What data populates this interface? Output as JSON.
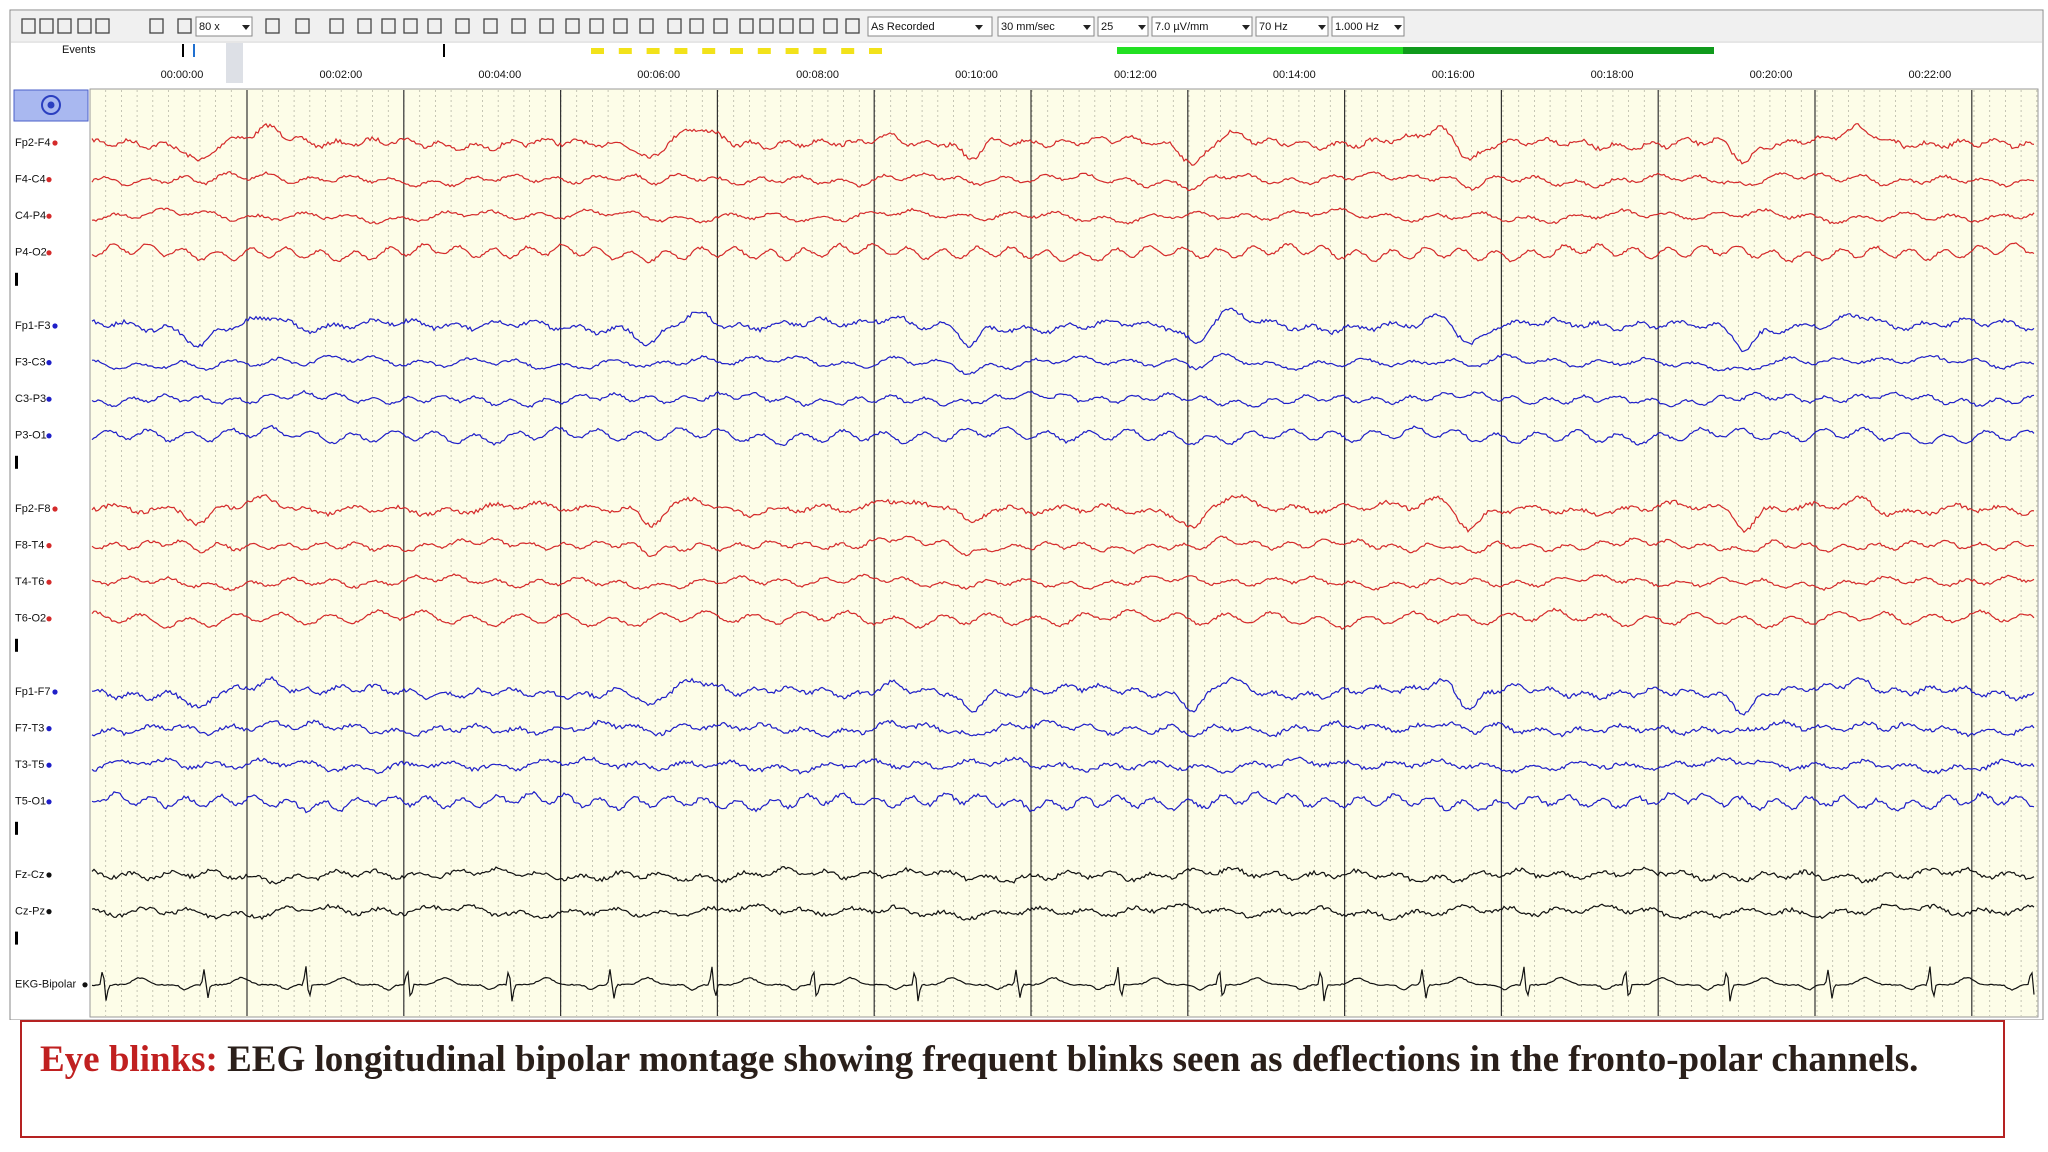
{
  "toolbar": {
    "zoom": "80 x",
    "montage": "As Recorded",
    "speed": "30 mm/sec",
    "value": "25",
    "sensitivity": "7.0 µV/mm",
    "high_filter": "70 Hz",
    "low_filter": "1.000 Hz"
  },
  "events_label": "Events",
  "time_labels": [
    "00:00:00",
    "00:02:00",
    "00:04:00",
    "00:06:00",
    "00:08:00",
    "00:10:00",
    "00:12:00",
    "00:14:00",
    "00:16:00",
    "00:18:00",
    "00:20:00",
    "00:22:00"
  ],
  "channels": [
    {
      "name": "Fp2-F4",
      "color": "#d42a2a"
    },
    {
      "name": "F4-C4",
      "color": "#d42a2a"
    },
    {
      "name": "C4-P4",
      "color": "#d42a2a"
    },
    {
      "name": "P4-O2",
      "color": "#d42a2a"
    },
    {
      "name": "Fp1-F3",
      "color": "#1f1fc8"
    },
    {
      "name": "F3-C3",
      "color": "#1f1fc8"
    },
    {
      "name": "C3-P3",
      "color": "#1f1fc8"
    },
    {
      "name": "P3-O1",
      "color": "#1f1fc8"
    },
    {
      "name": "Fp2-F8",
      "color": "#d42a2a"
    },
    {
      "name": "F8-T4",
      "color": "#d42a2a"
    },
    {
      "name": "T4-T6",
      "color": "#d42a2a"
    },
    {
      "name": "T6-O2",
      "color": "#d42a2a"
    },
    {
      "name": "Fp1-F7",
      "color": "#1f1fc8"
    },
    {
      "name": "F7-T3",
      "color": "#1f1fc8"
    },
    {
      "name": "T3-T5",
      "color": "#1f1fc8"
    },
    {
      "name": "T5-O1",
      "color": "#1f1fc8"
    },
    {
      "name": "Fz-Cz",
      "color": "#111111"
    },
    {
      "name": "Cz-Pz",
      "color": "#111111"
    },
    {
      "name": "EKG-Bipolar",
      "color": "#111111"
    }
  ],
  "caption": {
    "highlight": "Eye blinks:",
    "text": "EEG longitudinal bipolar montage showing frequent blinks seen as deflections in the fronto-polar channels."
  }
}
